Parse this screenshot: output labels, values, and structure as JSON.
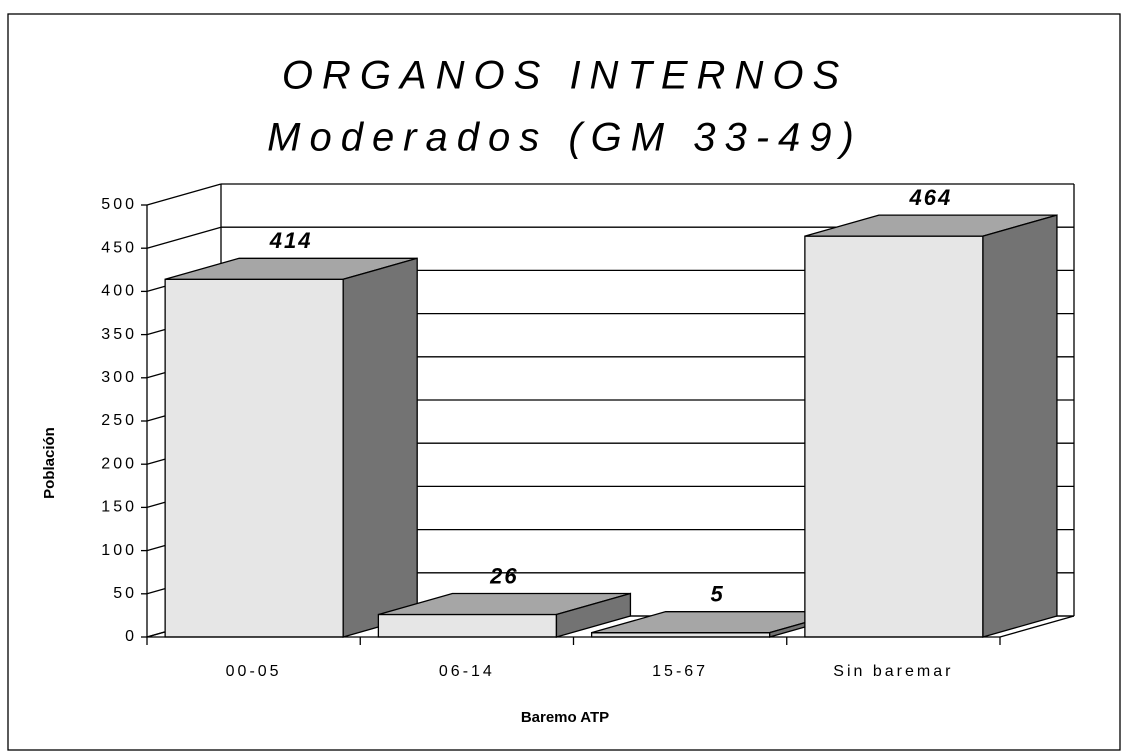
{
  "chart_data": {
    "type": "bar3d",
    "title": "ORGANOS INTERNOS",
    "subtitle": "Moderados (GM 33-49)",
    "x_label": "Baremo ATP",
    "y_label": "Población",
    "categories": [
      "00-05",
      "06-14",
      "15-67",
      "Sin baremar"
    ],
    "values": [
      414,
      26,
      5,
      464
    ],
    "color": "#e6e6e6",
    "ylim": [
      0,
      500
    ],
    "yticks": [
      0,
      50,
      100,
      150,
      200,
      250,
      300,
      350,
      400,
      450,
      500
    ],
    "grid": true
  }
}
